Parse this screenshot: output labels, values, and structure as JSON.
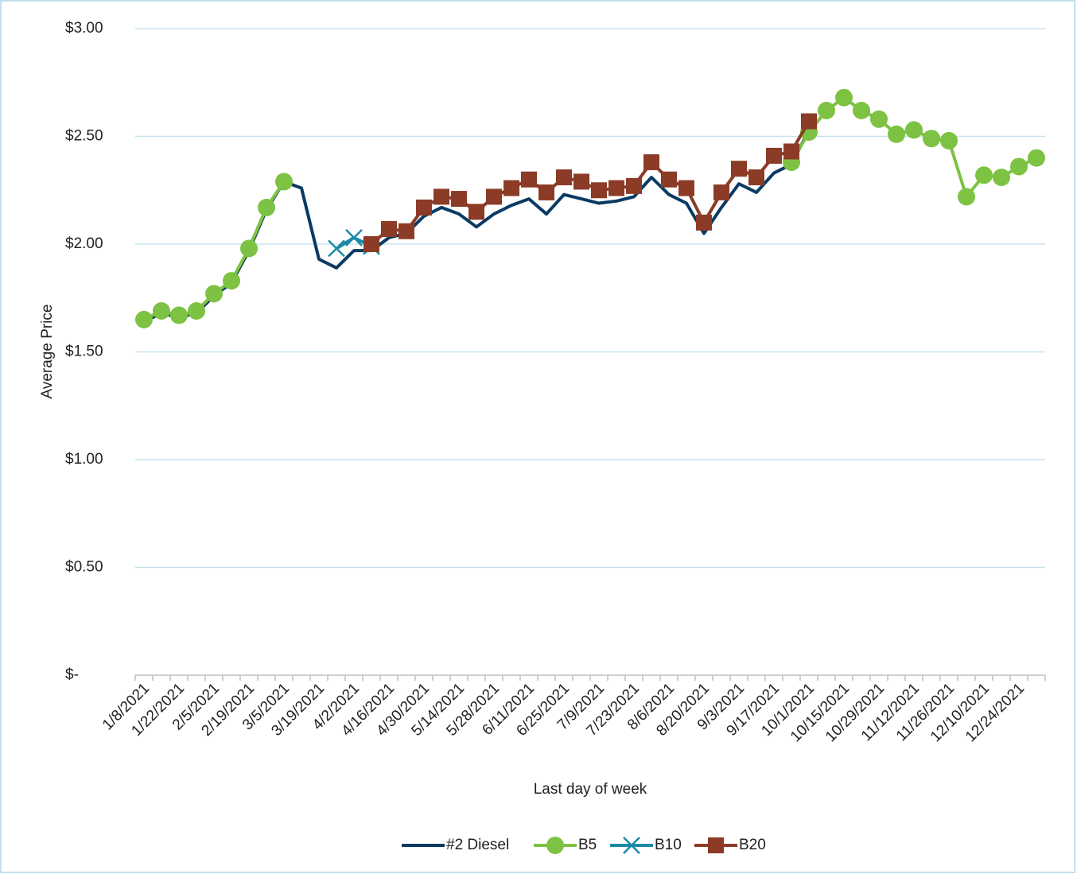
{
  "chart_data": {
    "type": "line",
    "x_label": "Last day of week",
    "y_label": "Average Price",
    "categories": [
      "1/8/2021",
      null,
      "1/22/2021",
      null,
      "2/5/2021",
      null,
      "2/19/2021",
      null,
      "3/5/2021",
      null,
      "3/19/2021",
      null,
      "4/2/2021",
      null,
      "4/16/2021",
      null,
      "4/30/2021",
      null,
      "5/14/2021",
      null,
      "5/28/2021",
      null,
      "6/11/2021",
      null,
      "6/25/2021",
      null,
      "7/9/2021",
      null,
      "7/23/2021",
      null,
      "8/6/2021",
      null,
      "8/20/2021",
      null,
      "9/3/2021",
      null,
      "9/17/2021",
      null,
      "10/1/2021",
      null,
      "10/15/2021",
      null,
      "10/29/2021",
      null,
      "11/12/2021",
      null,
      "11/26/2021",
      null,
      "12/10/2021",
      null,
      "12/24/2021",
      null
    ],
    "series": [
      {
        "name": "#2 Diesel",
        "color": "#0b3a63",
        "marker": "none",
        "values": [
          1.64,
          1.68,
          1.66,
          1.68,
          1.76,
          1.82,
          1.97,
          2.16,
          2.29,
          2.26,
          1.93,
          1.89,
          1.97,
          1.97,
          2.03,
          2.05,
          2.13,
          2.17,
          2.14,
          2.08,
          2.14,
          2.18,
          2.21,
          2.14,
          2.23,
          2.21,
          2.19,
          2.2,
          2.22,
          2.31,
          2.23,
          2.19,
          2.05,
          2.17,
          2.28,
          2.24,
          2.33,
          2.37,
          2.53,
          null,
          null,
          null,
          null,
          null,
          null,
          null,
          null,
          null,
          null,
          null,
          null,
          null
        ]
      },
      {
        "name": "B5",
        "color": "#7dc242",
        "marker": "circle",
        "values": [
          1.65,
          1.69,
          1.67,
          1.69,
          1.77,
          1.83,
          1.98,
          2.17,
          2.29,
          null,
          null,
          null,
          null,
          null,
          null,
          null,
          null,
          null,
          null,
          null,
          null,
          null,
          null,
          null,
          null,
          null,
          null,
          null,
          null,
          null,
          null,
          null,
          null,
          null,
          null,
          null,
          null,
          2.38,
          2.52,
          2.62,
          2.68,
          2.62,
          2.58,
          2.51,
          2.53,
          2.49,
          2.48,
          2.22,
          2.32,
          2.31,
          2.36,
          2.4
        ]
      },
      {
        "name": "B10",
        "color": "#1b8aa6",
        "marker": "x",
        "values": [
          null,
          null,
          null,
          null,
          null,
          null,
          null,
          null,
          null,
          null,
          null,
          1.98,
          2.03,
          1.99,
          null,
          null,
          null,
          null,
          null,
          null,
          null,
          null,
          null,
          null,
          null,
          null,
          null,
          null,
          null,
          null,
          null,
          null,
          null,
          null,
          null,
          null,
          null,
          null,
          null,
          null,
          null,
          null,
          null,
          null,
          null,
          null,
          null,
          null,
          null,
          null,
          null,
          null
        ]
      },
      {
        "name": "B20",
        "color": "#8c3b27",
        "marker": "square",
        "values": [
          null,
          null,
          null,
          null,
          null,
          null,
          null,
          null,
          null,
          null,
          null,
          null,
          null,
          2.0,
          2.07,
          2.06,
          2.17,
          2.22,
          2.21,
          2.15,
          2.22,
          2.26,
          2.3,
          2.24,
          2.31,
          2.29,
          2.25,
          2.26,
          2.27,
          2.38,
          2.3,
          2.26,
          2.1,
          2.24,
          2.35,
          2.31,
          2.41,
          2.43,
          2.57,
          null,
          null,
          null,
          null,
          null,
          null,
          null,
          null,
          null,
          null,
          null,
          null,
          null
        ]
      }
    ],
    "ylim": [
      0,
      3
    ],
    "yticks": [
      {
        "value": 0,
        "label": "$-"
      },
      {
        "value": 0.5,
        "label": "$0.50"
      },
      {
        "value": 1,
        "label": "$1.00"
      },
      {
        "value": 1.5,
        "label": "$1.50"
      },
      {
        "value": 2,
        "label": "$2.00"
      },
      {
        "value": 2.5,
        "label": "$2.50"
      },
      {
        "value": 3,
        "label": "$3.00"
      }
    ],
    "grid": true,
    "legend": "bottom"
  }
}
